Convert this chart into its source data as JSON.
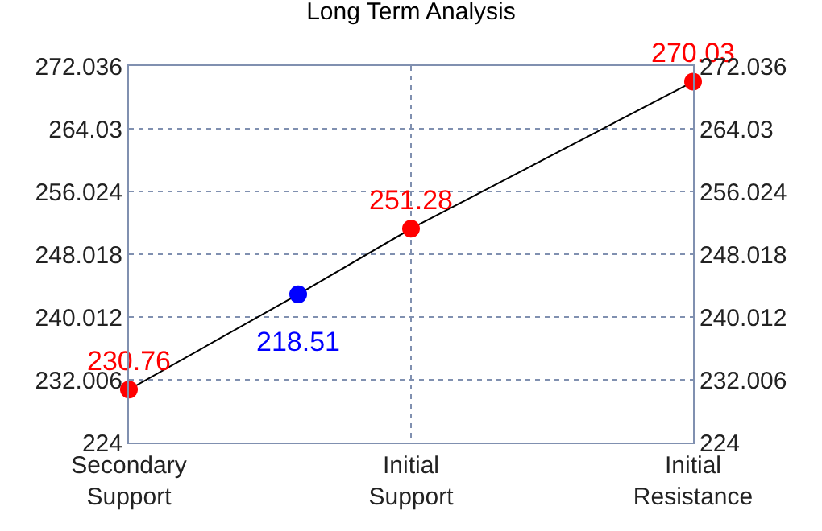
{
  "chart_data": {
    "type": "line",
    "title": "Long Term Analysis",
    "categories": [
      "Secondary\nSupport",
      null,
      null,
      null,
      null,
      "Initial\nSupport",
      null,
      null,
      null,
      null,
      "Initial\nResistance"
    ],
    "series": [
      {
        "color": "#000000",
        "colors": [
          "#ff0000",
          null,
          null,
          "#0000ff",
          null,
          "#ff0000",
          null,
          null,
          null,
          null,
          "#ff0000"
        ],
        "values": [
          230.76,
          null,
          null,
          242.9,
          null,
          251.28,
          null,
          null,
          null,
          null,
          270.03
        ],
        "value_labels": [
          "230.76",
          null,
          null,
          null,
          null,
          "251.28",
          null,
          null,
          null,
          null,
          "270.03"
        ]
      }
    ],
    "annotations": [
      {
        "text": "218.51",
        "y": 242.9
      }
    ],
    "ylim": [
      224,
      272.036
    ],
    "yticks": [
      224,
      232.006,
      240.012,
      248.018,
      256.024,
      264.03,
      272.036
    ],
    "y2lim": [
      224,
      272.036
    ],
    "y2ticks": [
      224,
      232.006,
      240.012,
      248.018,
      256.024,
      264.03,
      272.036
    ],
    "grid": true,
    "marker": "circle",
    "line_style": "solid"
  }
}
